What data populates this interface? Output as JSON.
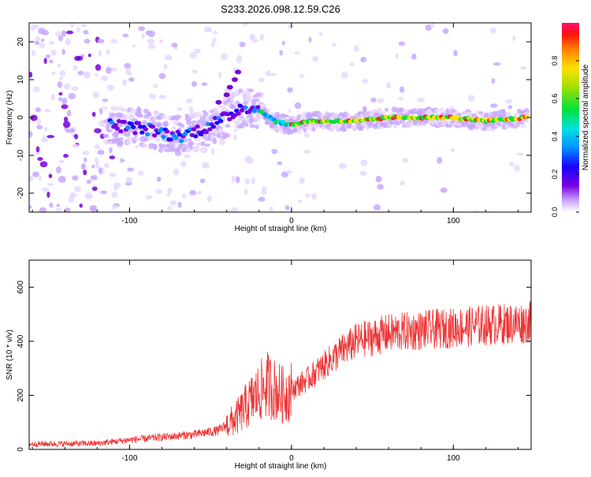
{
  "title": "S233.2026.098.12.59.C26",
  "chart_data": [
    {
      "type": "heatmap",
      "name": "spectrogram",
      "xlabel": "Height of straight line (km)",
      "ylabel": "Frequency (Hz)",
      "xlim": [
        -162,
        148
      ],
      "ylim": [
        -25,
        25
      ],
      "xticks": [
        -100,
        0,
        100
      ],
      "xtick_labels": [
        "-100",
        "0",
        "100"
      ],
      "yticks": [
        -20,
        -10,
        0,
        10,
        20
      ],
      "ytick_labels": [
        "-20",
        "-10",
        "0",
        "10",
        "20"
      ],
      "ridge": {
        "description": "dominant frequency track vs height",
        "x": [
          -110,
          -90,
          -70,
          -55,
          -40,
          -30,
          -20,
          -10,
          0,
          10,
          20,
          40,
          60,
          80,
          100,
          120,
          145
        ],
        "y": [
          -2,
          -3,
          -5,
          -3,
          0,
          3,
          2,
          -1,
          -2,
          -1,
          -1,
          -1,
          0,
          0,
          0,
          -1,
          0
        ]
      },
      "colorbar": {
        "label": "Normalized spectral amplitude",
        "range": [
          0,
          1
        ],
        "ticks": [
          0.0,
          0.2,
          0.4,
          0.6,
          0.8
        ],
        "tick_labels": [
          "0.0",
          "0.2",
          "0.4",
          "0.6",
          "0.8"
        ]
      }
    },
    {
      "type": "line",
      "name": "snr",
      "color": "#ee3333",
      "xlabel": "Height of straight line (km)",
      "ylabel": "SNR (10 * v/v)",
      "xlim": [
        -162,
        148
      ],
      "ylim": [
        0,
        700
      ],
      "xticks": [
        -100,
        0,
        100
      ],
      "xtick_labels": [
        "-100",
        "0",
        "100"
      ],
      "yticks": [
        0,
        200,
        400,
        600
      ],
      "ytick_labels": [
        "0",
        "200",
        "400",
        "600"
      ],
      "trend": {
        "x": [
          -162,
          -120,
          -100,
          -80,
          -60,
          -45,
          -35,
          -25,
          -15,
          -5,
          0,
          10,
          20,
          30,
          40,
          60,
          80,
          100,
          120,
          148
        ],
        "y": [
          20,
          22,
          35,
          45,
          55,
          70,
          110,
          180,
          240,
          200,
          220,
          260,
          310,
          360,
          400,
          430,
          440,
          450,
          460,
          470
        ]
      }
    }
  ]
}
